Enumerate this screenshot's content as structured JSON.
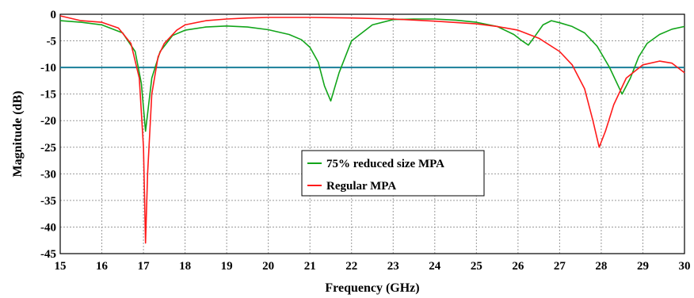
{
  "chart_data": {
    "type": "line",
    "xlabel": "Frequency (GHz)",
    "ylabel": "Magnitude (dB)",
    "xlim": [
      15,
      30
    ],
    "ylim": [
      -45,
      0
    ],
    "x_ticks": [
      15,
      16,
      17,
      18,
      19,
      20,
      21,
      22,
      23,
      24,
      25,
      26,
      27,
      28,
      29,
      30
    ],
    "y_ticks": [
      0,
      -5,
      -10,
      -15,
      -20,
      -25,
      -30,
      -35,
      -40,
      -45
    ],
    "grid": true,
    "legend_position": "center",
    "reference_line": {
      "y": -10,
      "color": "#1a7f99"
    },
    "series": [
      {
        "name": "75% reduced size MPA",
        "color": "#12a51a",
        "x": [
          15,
          15.5,
          16,
          16.5,
          16.8,
          16.95,
          17.05,
          17.2,
          17.4,
          17.7,
          18,
          18.5,
          19,
          19.5,
          20,
          20.5,
          20.8,
          21,
          21.2,
          21.35,
          21.5,
          21.7,
          22,
          22.5,
          23,
          23.5,
          24,
          24.5,
          25,
          25.5,
          25.9,
          26.1,
          26.25,
          26.4,
          26.6,
          26.8,
          27,
          27.3,
          27.6,
          27.9,
          28.2,
          28.5,
          28.7,
          28.9,
          29.1,
          29.4,
          29.7,
          30
        ],
        "y": [
          -1.2,
          -1.5,
          -2.0,
          -3.5,
          -7.0,
          -13.0,
          -22.0,
          -12.0,
          -7.0,
          -4.0,
          -3.0,
          -2.4,
          -2.2,
          -2.4,
          -2.9,
          -3.8,
          -4.8,
          -6.2,
          -9.0,
          -13.5,
          -16.3,
          -11.0,
          -5.0,
          -2.0,
          -1.0,
          -0.9,
          -0.9,
          -1.1,
          -1.5,
          -2.3,
          -3.8,
          -5.0,
          -5.8,
          -4.2,
          -2.0,
          -1.2,
          -1.6,
          -2.3,
          -3.5,
          -6.0,
          -10.0,
          -15.0,
          -12.0,
          -8.0,
          -5.5,
          -3.8,
          -2.8,
          -2.3
        ]
      },
      {
        "name": "Regular MPA",
        "color": "#ff1a1a",
        "x": [
          15,
          15.5,
          16,
          16.4,
          16.7,
          16.9,
          17.0,
          17.05,
          17.1,
          17.2,
          17.35,
          17.5,
          17.8,
          18,
          18.5,
          19,
          19.5,
          20,
          21,
          22,
          23,
          24,
          25,
          25.5,
          26,
          26.5,
          27,
          27.3,
          27.6,
          27.8,
          27.95,
          28.1,
          28.3,
          28.6,
          29,
          29.4,
          29.7,
          30
        ],
        "y": [
          -0.3,
          -1.2,
          -1.5,
          -2.6,
          -5.5,
          -12.0,
          -25.0,
          -43.0,
          -30.0,
          -15.0,
          -8.0,
          -5.5,
          -3.0,
          -2.0,
          -1.2,
          -0.9,
          -0.7,
          -0.6,
          -0.6,
          -0.7,
          -0.9,
          -1.3,
          -1.8,
          -2.3,
          -3.0,
          -4.5,
          -7.0,
          -9.5,
          -14.0,
          -20.0,
          -25.0,
          -22.0,
          -17.0,
          -12.0,
          -9.5,
          -8.8,
          -9.2,
          -11.0
        ]
      }
    ]
  }
}
